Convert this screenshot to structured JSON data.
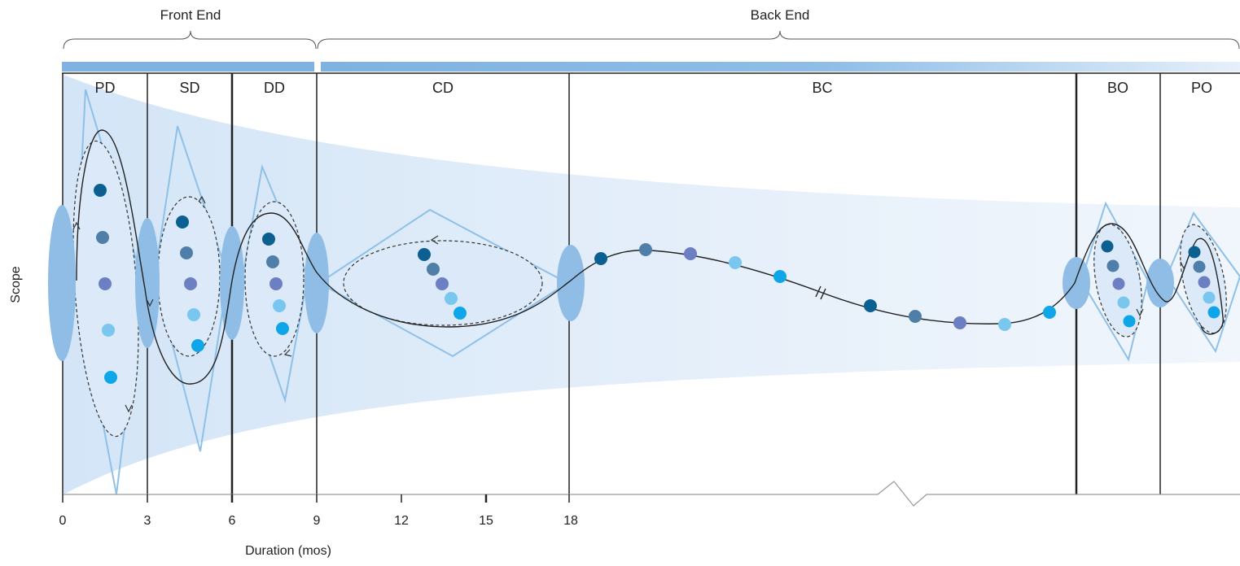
{
  "groups": {
    "front_end": "Front End",
    "back_end": "Back End"
  },
  "phases": [
    "PD",
    "SD",
    "DD",
    "CD",
    "BC",
    "BO",
    "PO"
  ],
  "axes": {
    "y_label": "Scope",
    "x_label": "Duration (mos)"
  },
  "ticks": [
    "0",
    "3",
    "6",
    "9",
    "12",
    "15",
    "18"
  ],
  "colors": {
    "bar": "#7fb2e0",
    "fill_light": "#dbe9f8",
    "fill_mid": "#8fbde6",
    "outline": "#8ec0e8",
    "dot_1": "#0b5f91",
    "dot_2": "#4f7fa8",
    "dot_3": "#6d7fc3",
    "dot_4": "#79c6ee",
    "dot_5": "#0ea6e8"
  }
}
